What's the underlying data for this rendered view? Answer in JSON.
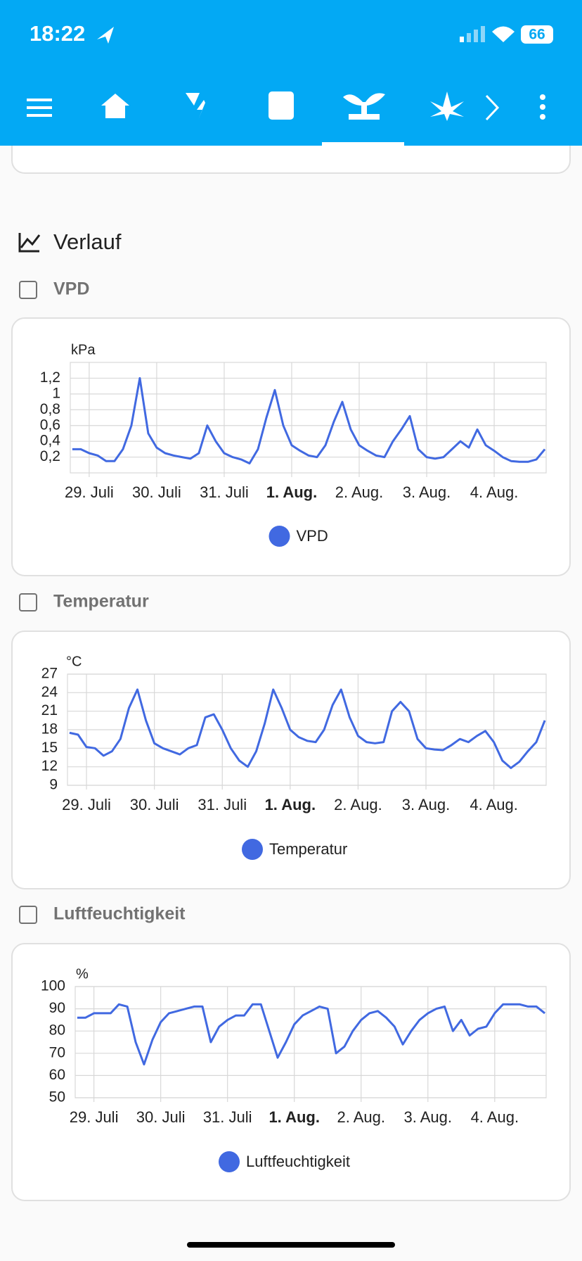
{
  "status_bar": {
    "time": "18:22",
    "battery": "66"
  },
  "section_title": "Verlauf",
  "chart_data": [
    {
      "type": "line",
      "title": "VPD",
      "y_label": "kPa",
      "grid": true,
      "xlim": [
        -0.28,
        6.77
      ],
      "xticks": [
        {
          "value": 0,
          "label": "29. Juli"
        },
        {
          "value": 1,
          "label": "30. Juli"
        },
        {
          "value": 2,
          "label": "31. Juli"
        },
        {
          "value": 3,
          "label": "1. Aug.",
          "bold": true
        },
        {
          "value": 4,
          "label": "2. Aug."
        },
        {
          "value": 5,
          "label": "3. Aug."
        },
        {
          "value": 6,
          "label": "4. Aug."
        }
      ],
      "ylim": [
        0,
        1.4
      ],
      "yticks": [
        {
          "value": 0.2,
          "label": "0,2"
        },
        {
          "value": 0.4,
          "label": "0,4"
        },
        {
          "value": 0.6,
          "label": "0,6"
        },
        {
          "value": 0.8,
          "label": "0,8"
        },
        1,
        {
          "value": 1.2,
          "label": "1,2"
        }
      ],
      "x": [
        -0.25,
        -0.125,
        0,
        0.125,
        0.25,
        0.375,
        0.5,
        0.625,
        0.75,
        0.875,
        1,
        1.125,
        1.25,
        1.375,
        1.5,
        1.625,
        1.75,
        1.875,
        2,
        2.125,
        2.25,
        2.375,
        2.5,
        2.625,
        2.75,
        2.875,
        3,
        3.125,
        3.25,
        3.375,
        3.5,
        3.625,
        3.75,
        3.875,
        4,
        4.125,
        4.25,
        4.375,
        4.5,
        4.625,
        4.75,
        4.875,
        5,
        5.125,
        5.25,
        5.375,
        5.5,
        5.625,
        5.75,
        5.875,
        6,
        6.125,
        6.25,
        6.375,
        6.5,
        6.625,
        6.75
      ],
      "series": [
        {
          "name": "VPD",
          "color": "#4169e1",
          "values": [
            0.3,
            0.3,
            0.25,
            0.22,
            0.15,
            0.15,
            0.3,
            0.6,
            1.2,
            0.5,
            0.32,
            0.25,
            0.22,
            0.2,
            0.18,
            0.25,
            0.6,
            0.4,
            0.25,
            0.2,
            0.17,
            0.12,
            0.3,
            0.7,
            1.05,
            0.6,
            0.35,
            0.28,
            0.22,
            0.2,
            0.35,
            0.65,
            0.9,
            0.55,
            0.35,
            0.28,
            0.22,
            0.2,
            0.4,
            0.55,
            0.72,
            0.3,
            0.2,
            0.18,
            0.2,
            0.3,
            0.4,
            0.32,
            0.55,
            0.35,
            0.28,
            0.2,
            0.15,
            0.14,
            0.14,
            0.17,
            0.3
          ]
        }
      ]
    },
    {
      "type": "line",
      "title": "Temperatur",
      "y_label": "°C",
      "grid": true,
      "xlim": [
        -0.28,
        6.77
      ],
      "xticks": [
        {
          "value": 0,
          "label": "29. Juli"
        },
        {
          "value": 1,
          "label": "30. Juli"
        },
        {
          "value": 2,
          "label": "31. Juli"
        },
        {
          "value": 3,
          "label": "1. Aug.",
          "bold": true
        },
        {
          "value": 4,
          "label": "2. Aug."
        },
        {
          "value": 5,
          "label": "3. Aug."
        },
        {
          "value": 6,
          "label": "4. Aug."
        }
      ],
      "ylim": [
        9,
        27
      ],
      "yticks": [
        9,
        12,
        15,
        18,
        21,
        24,
        27
      ],
      "x": [
        -0.25,
        -0.125,
        0,
        0.125,
        0.25,
        0.375,
        0.5,
        0.625,
        0.75,
        0.875,
        1,
        1.125,
        1.25,
        1.375,
        1.5,
        1.625,
        1.75,
        1.875,
        2,
        2.125,
        2.25,
        2.375,
        2.5,
        2.625,
        2.75,
        2.875,
        3,
        3.125,
        3.25,
        3.375,
        3.5,
        3.625,
        3.75,
        3.875,
        4,
        4.125,
        4.25,
        4.375,
        4.5,
        4.625,
        4.75,
        4.875,
        5,
        5.125,
        5.25,
        5.375,
        5.5,
        5.625,
        5.75,
        5.875,
        6,
        6.125,
        6.25,
        6.375,
        6.5,
        6.625,
        6.75
      ],
      "series": [
        {
          "name": "Temperatur",
          "color": "#4169e1",
          "values": [
            17.5,
            17.2,
            15.2,
            15,
            13.8,
            14.5,
            16.5,
            21.5,
            24.5,
            19.5,
            15.8,
            15,
            14.5,
            14,
            15,
            15.5,
            20,
            20.5,
            18,
            15,
            13,
            12,
            14.5,
            19,
            24.5,
            21.5,
            18,
            16.8,
            16.2,
            16,
            18,
            22,
            24.5,
            20,
            17,
            16,
            15.8,
            16,
            21,
            22.5,
            21,
            16.5,
            15,
            14.8,
            14.7,
            15.5,
            16.5,
            16,
            17,
            17.8,
            16,
            13,
            11.8,
            12.8,
            14.5,
            16,
            19.5
          ]
        }
      ]
    },
    {
      "type": "line",
      "title": "Luftfeuchtigkeit",
      "y_label": "%",
      "grid": true,
      "xlim": [
        -0.28,
        6.77
      ],
      "xticks": [
        {
          "value": 0,
          "label": "29. Juli"
        },
        {
          "value": 1,
          "label": "30. Juli"
        },
        {
          "value": 2,
          "label": "31. Juli"
        },
        {
          "value": 3,
          "label": "1. Aug.",
          "bold": true
        },
        {
          "value": 4,
          "label": "2. Aug."
        },
        {
          "value": 5,
          "label": "3. Aug."
        },
        {
          "value": 6,
          "label": "4. Aug."
        }
      ],
      "ylim": [
        50,
        100
      ],
      "yticks": [
        50,
        60,
        70,
        80,
        90,
        100
      ],
      "x": [
        -0.25,
        -0.125,
        0,
        0.125,
        0.25,
        0.375,
        0.5,
        0.625,
        0.75,
        0.875,
        1,
        1.125,
        1.25,
        1.375,
        1.5,
        1.625,
        1.75,
        1.875,
        2,
        2.125,
        2.25,
        2.375,
        2.5,
        2.625,
        2.75,
        2.875,
        3,
        3.125,
        3.25,
        3.375,
        3.5,
        3.625,
        3.75,
        3.875,
        4,
        4.125,
        4.25,
        4.375,
        4.5,
        4.625,
        4.75,
        4.875,
        5,
        5.125,
        5.25,
        5.375,
        5.5,
        5.625,
        5.75,
        5.875,
        6,
        6.125,
        6.25,
        6.375,
        6.5,
        6.625,
        6.75
      ],
      "series": [
        {
          "name": "Luftfeuchtigkeit",
          "color": "#4169e1",
          "values": [
            86,
            86,
            88,
            88,
            88,
            92,
            91,
            75,
            65,
            76,
            84,
            88,
            89,
            90,
            91,
            91,
            75,
            82,
            85,
            87,
            87,
            92,
            92,
            80,
            68,
            75,
            83,
            87,
            89,
            91,
            90,
            70,
            73,
            80,
            85,
            88,
            89,
            86,
            82,
            74,
            80,
            85,
            88,
            90,
            91,
            80,
            85,
            78,
            81,
            82,
            88,
            92,
            92,
            92,
            91,
            91,
            88
          ]
        }
      ]
    }
  ]
}
